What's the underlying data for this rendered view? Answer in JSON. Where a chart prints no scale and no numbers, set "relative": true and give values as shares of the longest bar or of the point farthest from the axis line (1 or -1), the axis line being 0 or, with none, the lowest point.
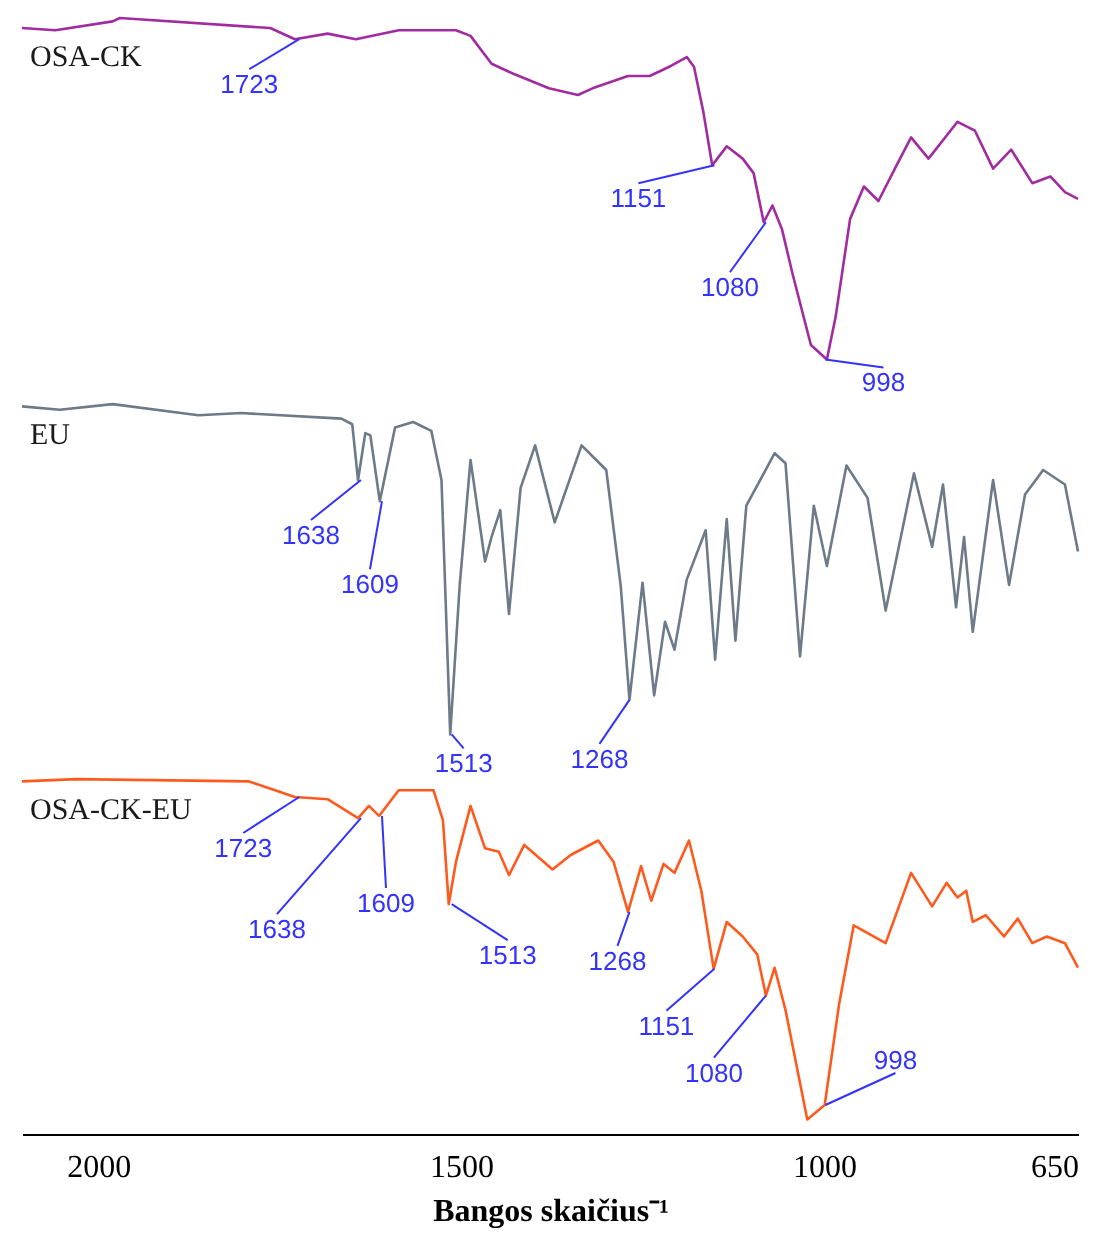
{
  "chart_data": {
    "type": "line",
    "relative": true,
    "xlabel": "Bangos skaičius⁻¹",
    "xlim": [
      2105,
      650
    ],
    "xticks": [
      2000,
      1500,
      1000,
      650
    ],
    "grid": false,
    "legend": false,
    "line_style": "solid",
    "marker": "none",
    "series": [
      {
        "name": "OSA-CK",
        "color": "#a02ca0",
        "x": [
          2105,
          2059,
          1980,
          1970,
          1763,
          1729,
          1684,
          1645,
          1586,
          1507,
          1487,
          1458,
          1428,
          1379,
          1339,
          1319,
          1270,
          1240,
          1211,
          1189,
          1179,
          1166,
          1154,
          1134,
          1112,
          1097,
          1083,
          1071,
          1058,
          1043,
          1018,
          996,
          984,
          964,
          945,
          925,
          900,
          880,
          856,
          816,
          792,
          767,
          742,
          713,
          688,
          668,
          650
        ],
        "values": [
          0.991,
          0.989,
          0.997,
          1,
          0.991,
          0.981,
          0.986,
          0.981,
          0.989,
          0.989,
          0.984,
          0.959,
          0.95,
          0.937,
          0.931,
          0.937,
          0.948,
          0.948,
          0.957,
          0.965,
          0.956,
          0.915,
          0.868,
          0.885,
          0.874,
          0.861,
          0.817,
          0.832,
          0.811,
          0.77,
          0.707,
          0.694,
          0.732,
          0.82,
          0.849,
          0.836,
          0.868,
          0.893,
          0.874,
          0.907,
          0.899,
          0.865,
          0.882,
          0.852,
          0.858,
          0.844,
          0.838
        ]
      },
      {
        "name": "EU",
        "color": "#6c7a89",
        "x": [
          2105,
          2053,
          1980,
          1862,
          1803,
          1665,
          1650,
          1642,
          1632,
          1625,
          1612,
          1591,
          1566,
          1541,
          1527,
          1515,
          1502,
          1487,
          1467,
          1458,
          1446,
          1434,
          1418,
          1398,
          1371,
          1334,
          1300,
          1280,
          1268,
          1250,
          1234,
          1219,
          1206,
          1189,
          1163,
          1150,
          1134,
          1122,
          1107,
          1068,
          1053,
          1033,
          1014,
          996,
          969,
          940,
          915,
          876,
          851,
          836,
          818,
          807,
          795,
          767,
          745,
          723,
          698,
          668,
          650
        ],
        "values": [
          0.652,
          0.649,
          0.654,
          0.644,
          0.646,
          0.641,
          0.636,
          0.586,
          0.628,
          0.626,
          0.567,
          0.633,
          0.638,
          0.63,
          0.586,
          0.358,
          0.491,
          0.604,
          0.513,
          0.535,
          0.559,
          0.466,
          0.579,
          0.617,
          0.548,
          0.617,
          0.595,
          0.491,
          0.389,
          0.494,
          0.393,
          0.459,
          0.434,
          0.497,
          0.541,
          0.425,
          0.551,
          0.442,
          0.563,
          0.61,
          0.601,
          0.428,
          0.563,
          0.509,
          0.599,
          0.57,
          0.469,
          0.592,
          0.526,
          0.582,
          0.472,
          0.535,
          0.45,
          0.586,
          0.492,
          0.573,
          0.595,
          0.582,
          0.522
        ]
      },
      {
        "name": "OSA-CK-EU",
        "color": "#ff5a1e",
        "x": [
          2105,
          2030,
          1793,
          1729,
          1684,
          1642,
          1627,
          1613,
          1586,
          1538,
          1525,
          1517,
          1507,
          1487,
          1467,
          1448,
          1434,
          1413,
          1374,
          1349,
          1311,
          1290,
          1270,
          1252,
          1238,
          1221,
          1206,
          1186,
          1169,
          1152,
          1134,
          1112,
          1092,
          1080,
          1068,
          1053,
          1023,
          999,
          979,
          959,
          915,
          880,
          851,
          831,
          816,
          804,
          795,
          777,
          752,
          733,
          713,
          693,
          668,
          650
        ],
        "values": [
          0.316,
          0.318,
          0.316,
          0.302,
          0.3,
          0.283,
          0.294,
          0.285,
          0.308,
          0.308,
          0.281,
          0.206,
          0.244,
          0.294,
          0.256,
          0.253,
          0.232,
          0.259,
          0.237,
          0.25,
          0.263,
          0.244,
          0.199,
          0.24,
          0.209,
          0.242,
          0.234,
          0.263,
          0.218,
          0.148,
          0.19,
          0.177,
          0.161,
          0.124,
          0.149,
          0.111,
          0.013,
          0.026,
          0.117,
          0.187,
          0.171,
          0.234,
          0.204,
          0.225,
          0.212,
          0.218,
          0.19,
          0.196,
          0.177,
          0.193,
          0.171,
          0.177,
          0.171,
          0.149
        ]
      }
    ],
    "annotations": [
      {
        "text": "1723",
        "x": 1723,
        "y": 0.981
      },
      {
        "text": "1151",
        "x": 1151,
        "y": 0.868
      },
      {
        "text": "1080",
        "x": 1080,
        "y": 0.817
      },
      {
        "text": "998",
        "x": 998,
        "y": 0.694
      },
      {
        "text": "1638",
        "x": 1638,
        "y": 0.586
      },
      {
        "text": "1609",
        "x": 1609,
        "y": 0.567
      },
      {
        "text": "1513",
        "x": 1513,
        "y": 0.358
      },
      {
        "text": "1268",
        "x": 1268,
        "y": 0.389
      },
      {
        "text": "1723",
        "x": 1723,
        "y": 0.302
      },
      {
        "text": "1638",
        "x": 1638,
        "y": 0.283
      },
      {
        "text": "1609",
        "x": 1609,
        "y": 0.285
      },
      {
        "text": "1513",
        "x": 1513,
        "y": 0.206
      },
      {
        "text": "1268",
        "x": 1268,
        "y": 0.199
      },
      {
        "text": "1151",
        "x": 1151,
        "y": 0.148
      },
      {
        "text": "1080",
        "x": 1080,
        "y": 0.124
      },
      {
        "text": "998",
        "x": 998,
        "y": 0.026
      }
    ]
  }
}
